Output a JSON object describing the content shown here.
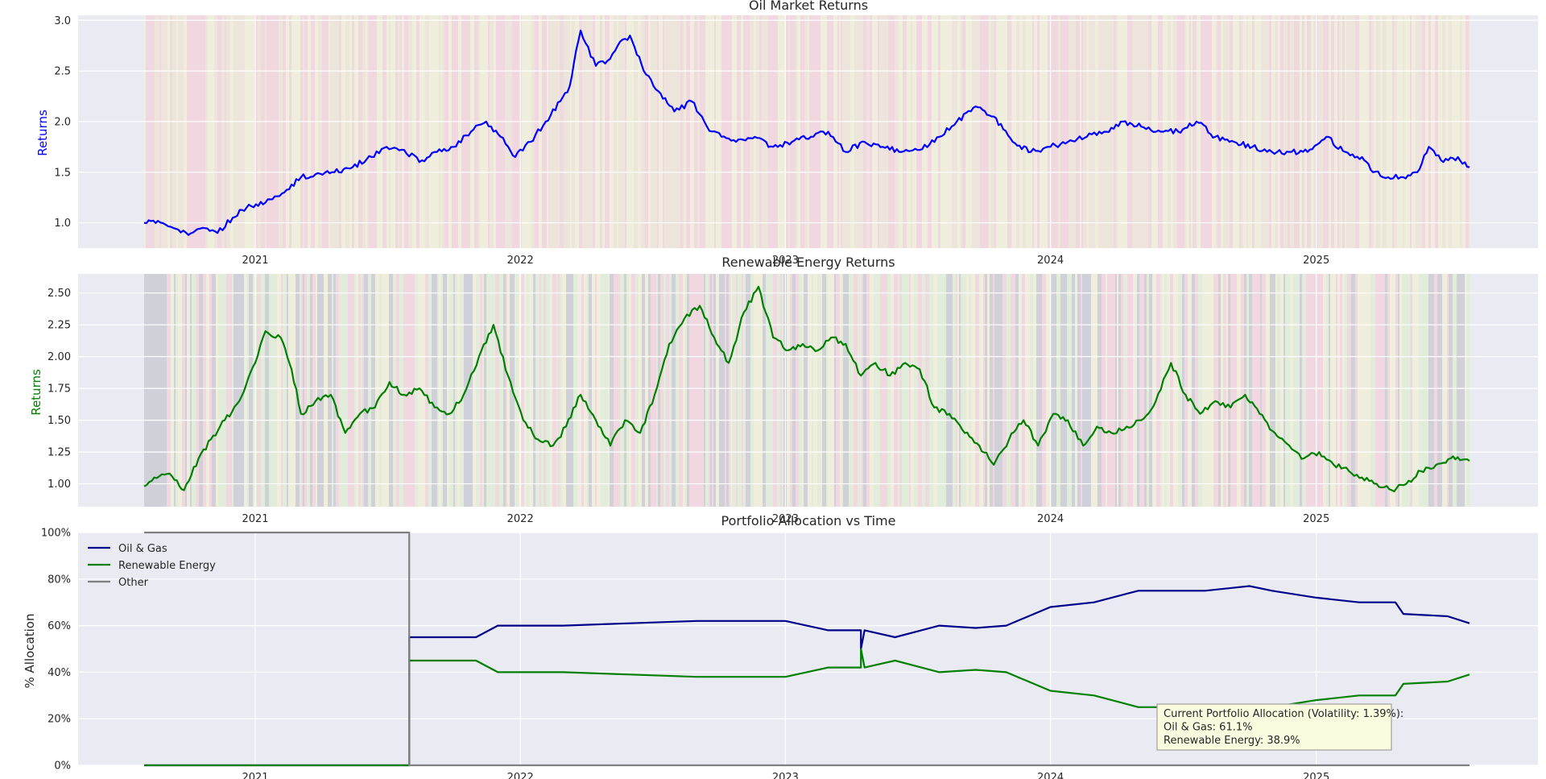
{
  "figure": {
    "background": "#ffffff",
    "plot_background": "#eaeaf2",
    "grid_color": "#ffffff"
  },
  "chart_data": [
    {
      "type": "line",
      "title": "Oil Market Returns",
      "ylabel": "Returns",
      "ylabel_color": "#0000ff",
      "line_color": "#0000ff",
      "xlim": [
        "2020-07-01",
        "2025-08-01"
      ],
      "ylim": [
        0.75,
        3.05
      ],
      "yticks": [
        1.0,
        1.5,
        2.0,
        2.5,
        3.0
      ],
      "ytick_labels": [
        "1.0",
        "1.5",
        "2.0",
        "2.5",
        "3.0"
      ],
      "xticks": [
        "2021-01-01",
        "2022-01-01",
        "2023-01-01",
        "2024-01-01",
        "2025-01-01"
      ],
      "xtick_labels": [
        "2021",
        "2022",
        "2023",
        "2024",
        "2025"
      ],
      "grid": true,
      "background_band_colors": [
        "#f5c6d0",
        "#efe0c8",
        "#f2eec8"
      ],
      "series": [
        {
          "x": [
            "2020-08-01",
            "2020-08-20",
            "2020-09-10",
            "2020-10-01",
            "2020-10-20",
            "2020-11-10",
            "2020-12-01",
            "2020-12-20",
            "2021-01-15",
            "2021-02-10",
            "2021-03-05",
            "2021-03-25",
            "2021-04-20",
            "2021-05-15",
            "2021-06-10",
            "2021-07-01",
            "2021-07-25",
            "2021-08-15",
            "2021-09-05",
            "2021-10-01",
            "2021-10-25",
            "2021-11-15",
            "2021-12-05",
            "2021-12-25",
            "2022-01-15",
            "2022-02-05",
            "2022-02-25",
            "2022-03-10",
            "2022-03-25",
            "2022-04-15",
            "2022-05-01",
            "2022-05-15",
            "2022-06-01",
            "2022-06-20",
            "2022-07-10",
            "2022-08-01",
            "2022-08-25",
            "2022-09-15",
            "2022-10-05",
            "2022-10-25",
            "2022-11-20",
            "2022-12-15",
            "2023-01-10",
            "2023-02-05",
            "2023-03-01",
            "2023-03-25",
            "2023-04-20",
            "2023-05-15",
            "2023-06-10",
            "2023-07-05",
            "2023-08-01",
            "2023-08-25",
            "2023-09-20",
            "2023-10-15",
            "2023-11-10",
            "2023-12-05",
            "2024-01-01",
            "2024-01-25",
            "2024-02-20",
            "2024-03-15",
            "2024-04-10",
            "2024-05-05",
            "2024-06-01",
            "2024-06-25",
            "2024-07-20",
            "2024-08-15",
            "2024-09-10",
            "2024-10-05",
            "2024-11-01",
            "2024-11-25",
            "2024-12-20",
            "2025-01-15",
            "2025-02-10",
            "2025-03-05",
            "2025-03-20",
            "2025-04-10",
            "2025-05-01",
            "2025-05-20",
            "2025-06-05",
            "2025-06-25",
            "2025-07-15",
            "2025-07-31"
          ],
          "y": [
            1.0,
            1.02,
            0.95,
            0.88,
            0.95,
            0.9,
            1.05,
            1.15,
            1.2,
            1.3,
            1.45,
            1.48,
            1.5,
            1.55,
            1.65,
            1.75,
            1.72,
            1.6,
            1.7,
            1.75,
            1.9,
            2.0,
            1.85,
            1.65,
            1.8,
            2.0,
            2.2,
            2.35,
            2.9,
            2.55,
            2.6,
            2.75,
            2.85,
            2.5,
            2.3,
            2.1,
            2.2,
            1.95,
            1.85,
            1.8,
            1.85,
            1.75,
            1.8,
            1.85,
            1.9,
            1.7,
            1.8,
            1.75,
            1.7,
            1.72,
            1.85,
            2.0,
            2.15,
            2.05,
            1.8,
            1.7,
            1.75,
            1.8,
            1.85,
            1.9,
            2.0,
            1.95,
            1.9,
            1.9,
            2.0,
            1.85,
            1.8,
            1.75,
            1.7,
            1.7,
            1.7,
            1.85,
            1.7,
            1.65,
            1.5,
            1.45,
            1.45,
            1.5,
            1.75,
            1.6,
            1.65,
            1.55
          ]
        }
      ]
    },
    {
      "type": "line",
      "title": "Renewable Energy Returns",
      "ylabel": "Returns",
      "ylabel_color": "#008000",
      "line_color": "#008000",
      "xlim": [
        "2020-07-01",
        "2025-08-01"
      ],
      "ylim": [
        0.82,
        2.65
      ],
      "yticks": [
        1.0,
        1.25,
        1.5,
        1.75,
        2.0,
        2.25,
        2.5
      ],
      "ytick_labels": [
        "1.00",
        "1.25",
        "1.50",
        "1.75",
        "2.00",
        "2.25",
        "2.50"
      ],
      "xticks": [
        "2021-01-01",
        "2022-01-01",
        "2023-01-01",
        "2024-01-01",
        "2025-01-01"
      ],
      "xtick_labels": [
        "2021",
        "2022",
        "2023",
        "2024",
        "2025"
      ],
      "grid": true,
      "background_band_colors": [
        "#f5c6d0",
        "#f2eec8",
        "#d8ecc8",
        "#babac4"
      ],
      "series": [
        {
          "x": [
            "2020-08-01",
            "2020-08-15",
            "2020-09-05",
            "2020-09-25",
            "2020-10-15",
            "2020-11-01",
            "2020-11-20",
            "2020-12-10",
            "2021-01-01",
            "2021-01-15",
            "2021-02-05",
            "2021-02-20",
            "2021-03-05",
            "2021-03-25",
            "2021-04-15",
            "2021-05-05",
            "2021-05-25",
            "2021-06-15",
            "2021-07-05",
            "2021-07-25",
            "2021-08-15",
            "2021-09-05",
            "2021-09-25",
            "2021-10-15",
            "2021-11-05",
            "2021-11-25",
            "2021-12-15",
            "2022-01-05",
            "2022-01-25",
            "2022-02-15",
            "2022-03-05",
            "2022-03-25",
            "2022-04-15",
            "2022-05-05",
            "2022-05-25",
            "2022-06-15",
            "2022-07-05",
            "2022-07-25",
            "2022-08-15",
            "2022-09-05",
            "2022-09-25",
            "2022-10-15",
            "2022-11-05",
            "2022-11-25",
            "2022-12-15",
            "2023-01-05",
            "2023-01-25",
            "2023-02-15",
            "2023-03-05",
            "2023-03-25",
            "2023-04-15",
            "2023-05-05",
            "2023-05-25",
            "2023-06-15",
            "2023-07-05",
            "2023-07-25",
            "2023-08-15",
            "2023-09-05",
            "2023-09-25",
            "2023-10-15",
            "2023-11-05",
            "2023-11-25",
            "2023-12-15",
            "2024-01-05",
            "2024-01-25",
            "2024-02-15",
            "2024-03-05",
            "2024-03-25",
            "2024-04-15",
            "2024-05-05",
            "2024-05-25",
            "2024-06-15",
            "2024-07-05",
            "2024-07-25",
            "2024-08-15",
            "2024-09-05",
            "2024-09-25",
            "2024-10-15",
            "2024-11-05",
            "2024-11-25",
            "2024-12-15",
            "2025-01-05",
            "2025-01-25",
            "2025-02-15",
            "2025-03-05",
            "2025-03-25",
            "2025-04-15",
            "2025-05-05",
            "2025-05-25",
            "2025-06-15",
            "2025-07-05",
            "2025-07-31"
          ],
          "y": [
            0.98,
            1.05,
            1.08,
            0.95,
            1.2,
            1.35,
            1.5,
            1.65,
            1.95,
            2.2,
            2.15,
            1.9,
            1.55,
            1.65,
            1.7,
            1.4,
            1.55,
            1.6,
            1.8,
            1.7,
            1.75,
            1.6,
            1.55,
            1.7,
            2.0,
            2.25,
            1.85,
            1.5,
            1.35,
            1.3,
            1.45,
            1.7,
            1.5,
            1.3,
            1.5,
            1.4,
            1.7,
            2.1,
            2.3,
            2.4,
            2.15,
            1.95,
            2.35,
            2.55,
            2.15,
            2.05,
            2.1,
            2.05,
            2.15,
            2.1,
            1.85,
            1.95,
            1.85,
            1.95,
            1.9,
            1.6,
            1.55,
            1.4,
            1.3,
            1.15,
            1.35,
            1.5,
            1.3,
            1.55,
            1.5,
            1.3,
            1.45,
            1.4,
            1.45,
            1.5,
            1.65,
            1.95,
            1.7,
            1.55,
            1.65,
            1.6,
            1.7,
            1.55,
            1.4,
            1.3,
            1.2,
            1.25,
            1.15,
            1.1,
            1.05,
            1.0,
            0.95,
            1.0,
            1.1,
            1.15,
            1.2,
            1.18
          ]
        }
      ]
    },
    {
      "type": "line",
      "title": "Portfolio Allocation vs Time",
      "ylabel": "% Allocation",
      "xlim": [
        "2020-07-01",
        "2025-08-01"
      ],
      "ylim": [
        0,
        100
      ],
      "yticks": [
        0,
        20,
        40,
        60,
        80,
        100
      ],
      "ytick_labels": [
        "0%",
        "20%",
        "40%",
        "60%",
        "80%",
        "100%"
      ],
      "xticks": [
        "2021-01-01",
        "2022-01-01",
        "2023-01-01",
        "2024-01-01",
        "2025-01-01"
      ],
      "xtick_labels": [
        "2021",
        "2022",
        "2023",
        "2024",
        "2025"
      ],
      "grid": true,
      "legend": {
        "location": "top-left",
        "entries": [
          "Oil & Gas",
          "Renewable Energy",
          "Other"
        ]
      },
      "series": [
        {
          "name": "Oil & Gas",
          "color": "#00008b",
          "x": [
            "2020-08-01",
            "2021-08-01",
            "2021-08-01",
            "2021-11-01",
            "2021-12-01",
            "2022-01-01",
            "2022-03-01",
            "2022-06-01",
            "2022-09-01",
            "2022-12-01",
            "2023-01-01",
            "2023-03-01",
            "2023-04-15",
            "2023-04-15",
            "2023-04-20",
            "2023-06-01",
            "2023-08-01",
            "2023-09-20",
            "2023-11-01",
            "2024-01-01",
            "2024-03-01",
            "2024-05-01",
            "2024-08-01",
            "2024-10-01",
            "2024-11-01",
            "2025-01-01",
            "2025-03-01",
            "2025-04-20",
            "2025-05-01",
            "2025-07-01",
            "2025-07-31"
          ],
          "y": [
            0,
            0,
            55,
            55,
            60,
            60,
            60,
            61,
            62,
            62,
            62,
            58,
            58,
            50,
            58,
            55,
            60,
            59,
            60,
            68,
            70,
            75,
            75,
            77,
            75,
            72,
            70,
            70,
            65,
            64,
            61
          ]
        },
        {
          "name": "Renewable Energy",
          "color": "#008000",
          "x": [
            "2020-08-01",
            "2021-08-01",
            "2021-08-01",
            "2021-11-01",
            "2021-12-01",
            "2022-01-01",
            "2022-03-01",
            "2022-06-01",
            "2022-09-01",
            "2022-12-01",
            "2023-01-01",
            "2023-03-01",
            "2023-04-15",
            "2023-04-15",
            "2023-04-20",
            "2023-06-01",
            "2023-08-01",
            "2023-09-20",
            "2023-11-01",
            "2024-01-01",
            "2024-03-01",
            "2024-05-01",
            "2024-08-01",
            "2024-10-01",
            "2024-11-01",
            "2025-01-01",
            "2025-03-01",
            "2025-04-20",
            "2025-05-01",
            "2025-07-01",
            "2025-07-31"
          ],
          "y": [
            0,
            0,
            45,
            45,
            40,
            40,
            40,
            39,
            38,
            38,
            38,
            42,
            42,
            50,
            42,
            45,
            40,
            41,
            40,
            32,
            30,
            25,
            25,
            23,
            25,
            28,
            30,
            30,
            35,
            36,
            39
          ]
        },
        {
          "name": "Other",
          "color": "#808080",
          "x": [
            "2020-08-01",
            "2021-08-01",
            "2021-08-01",
            "2025-07-31"
          ],
          "y": [
            100,
            100,
            0,
            0
          ]
        }
      ],
      "annotation": {
        "lines": [
          "Current Portfolio Allocation (Volatility: 1.39%):",
          "Oil & Gas: 61.1%",
          "Renewable Energy: 38.9%"
        ],
        "background": "#fbfbe0"
      }
    }
  ]
}
